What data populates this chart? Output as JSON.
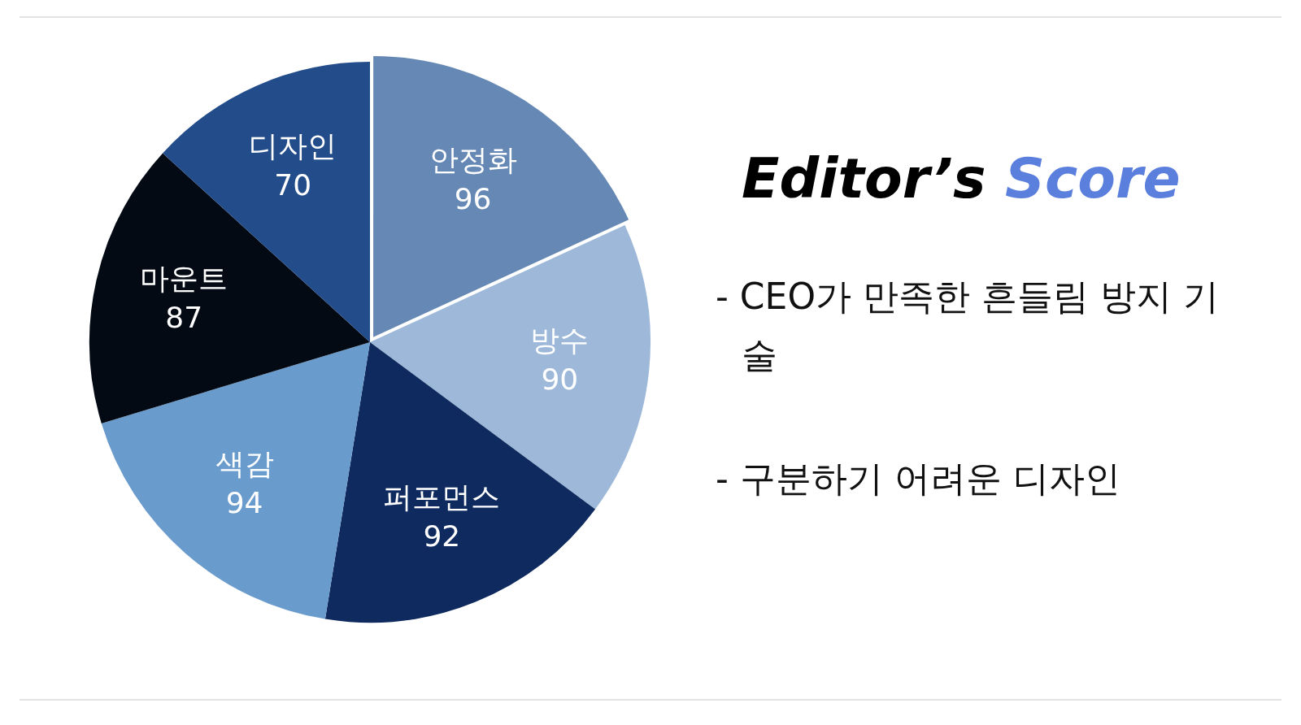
{
  "chart_data": {
    "type": "pie",
    "title": "Editor’s Score",
    "categories": [
      "안정화",
      "방수",
      "퍼포먼스",
      "색감",
      "마운트",
      "디자인"
    ],
    "values": [
      96,
      90,
      92,
      94,
      87,
      70
    ],
    "colors": [
      "#6688b4",
      "#9db8d8",
      "#0e2a5e",
      "#6a9bcd",
      "#030a14",
      "#234c8a"
    ],
    "data_labels": true,
    "legend": false,
    "annotations": [
      "- CEO가 만족한 흔들림 방지 기술",
      "- 구분하기 어려운 디자인"
    ]
  }
}
